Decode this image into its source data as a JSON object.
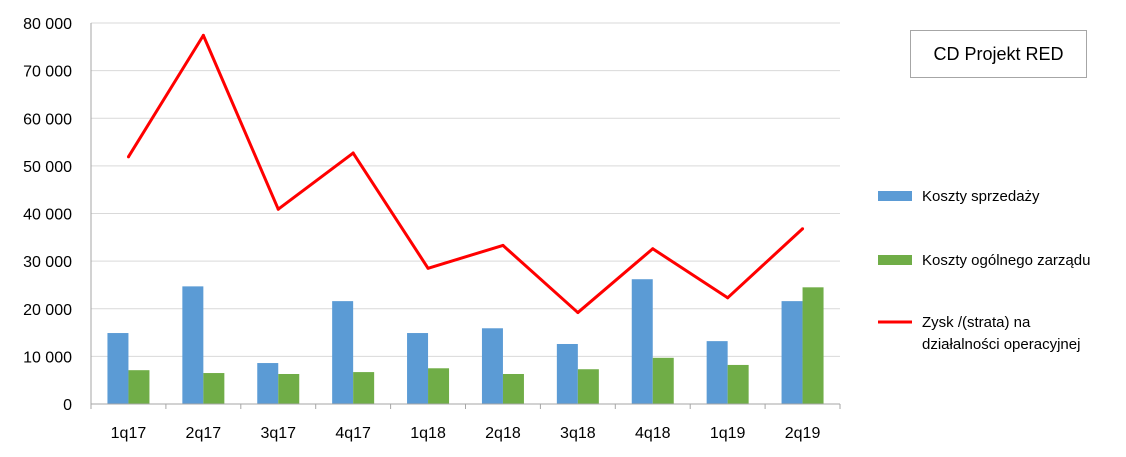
{
  "chart_data": {
    "type": "bar",
    "title": "CD Projekt RED",
    "categories": [
      "1q17",
      "2q17",
      "3q17",
      "4q17",
      "1q18",
      "2q18",
      "3q18",
      "4q18",
      "1q19",
      "2q19"
    ],
    "series": [
      {
        "name": "Koszty sprzedaży",
        "type": "bar",
        "color": "#5b9bd5",
        "values": [
          14900,
          24700,
          8600,
          21600,
          14900,
          15900,
          12600,
          26200,
          13200,
          21600
        ]
      },
      {
        "name": "Koszty ogólnego zarządu",
        "type": "bar",
        "color": "#70ad47",
        "values": [
          7100,
          6500,
          6300,
          6700,
          7500,
          6300,
          7300,
          9700,
          8200,
          24500
        ]
      },
      {
        "name": "Zysk /(strata) na działalności operacyjnej",
        "type": "line",
        "color": "#ff0000",
        "values": [
          51900,
          77400,
          40900,
          52700,
          28500,
          33300,
          19200,
          32600,
          22300,
          36800
        ]
      }
    ],
    "y_ticks": [
      "0",
      "10 000",
      "20 000",
      "30 000",
      "40 000",
      "50 000",
      "60 000",
      "70 000",
      "80 000"
    ],
    "ylim": [
      0,
      80000
    ],
    "grid": true,
    "legend_position": "right"
  }
}
